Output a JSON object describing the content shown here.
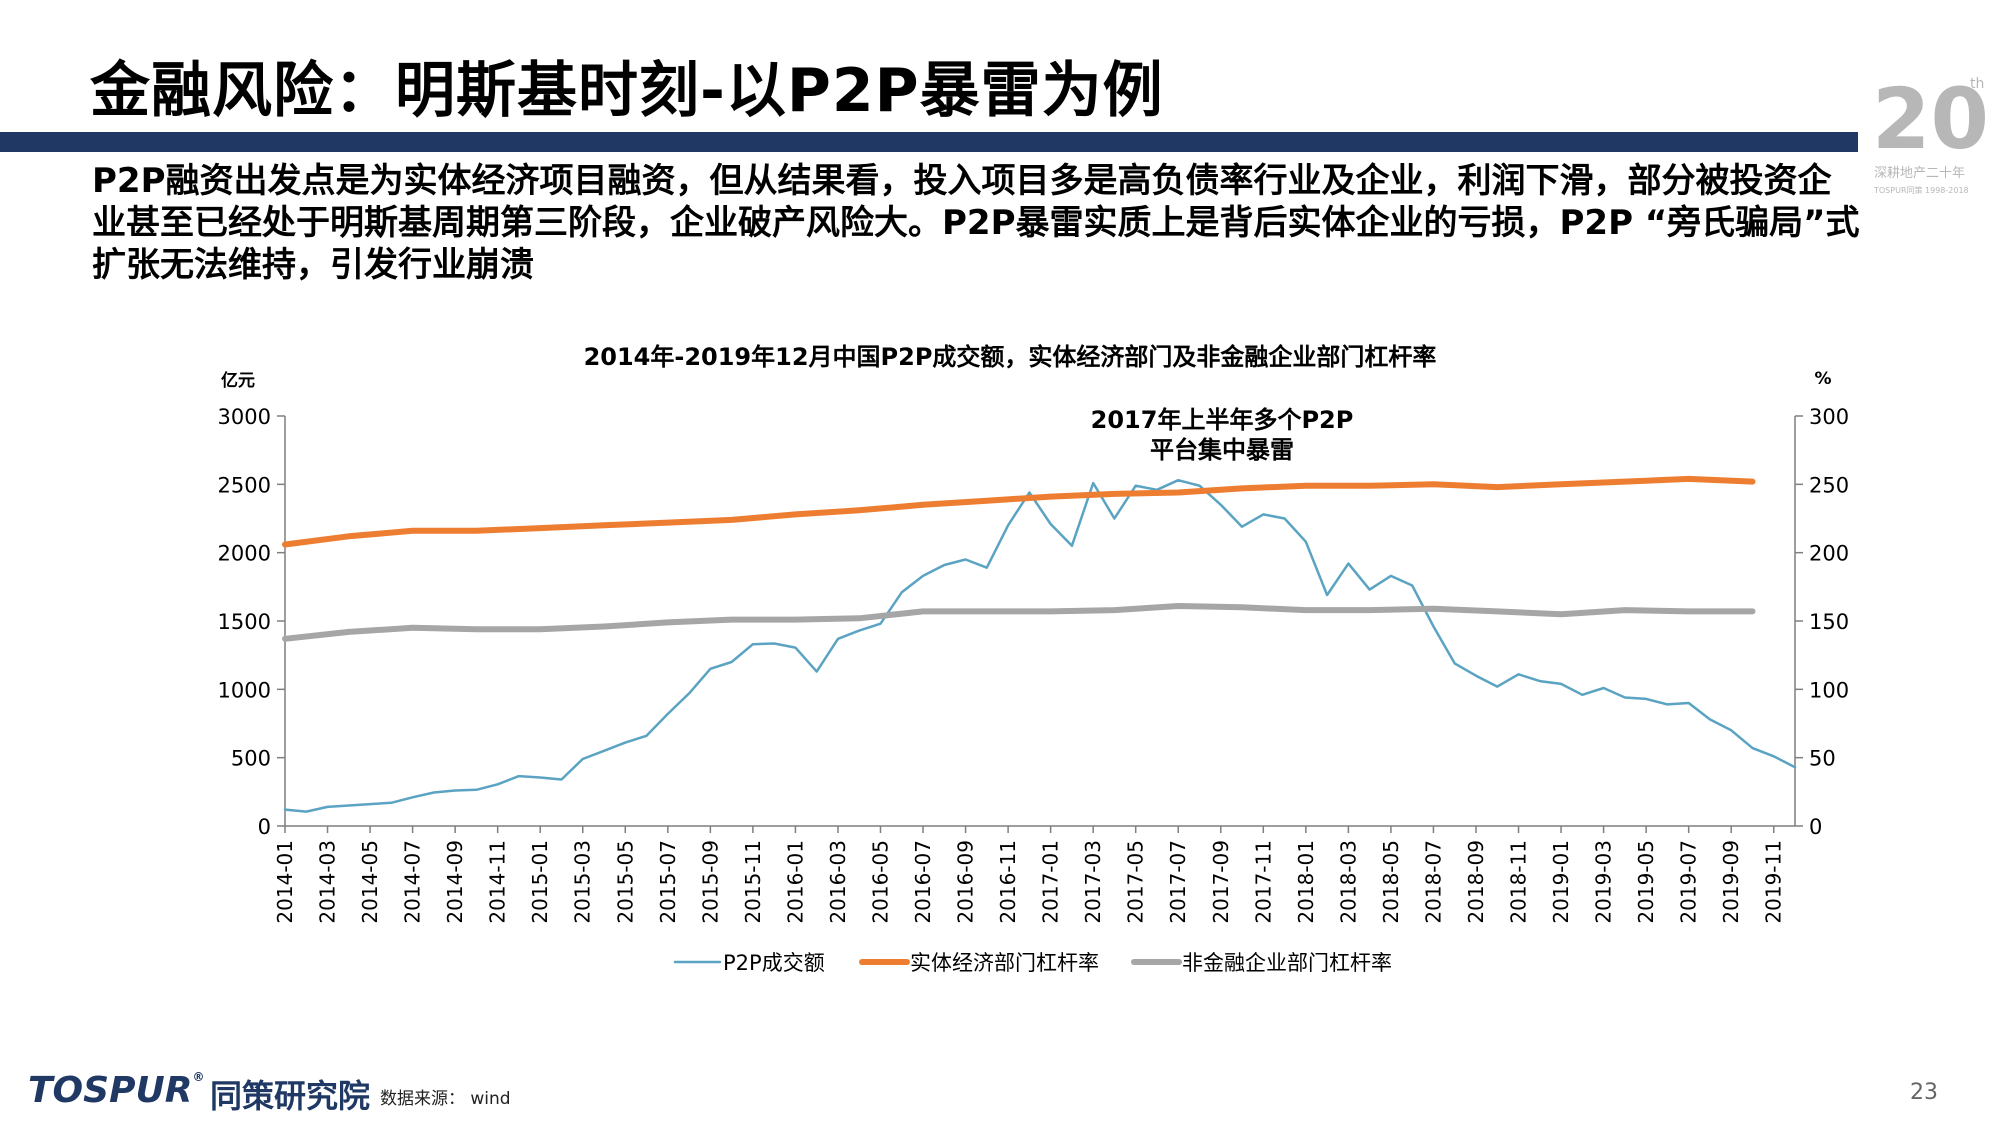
{
  "header": {
    "title": "金融风险：明斯基时刻-以P2P暴雷为例",
    "logo_text": "20th",
    "logo_caption": "深耕地产二十年",
    "logo_brand": "TOSPUR同策 1998-2018"
  },
  "description": "P2P融资出发点是为实体经济项目融资，但从结果看，投入项目多是高负债率行业及企业，利润下滑，部分被投资企业甚至已经处于明斯基周期第三阶段，企业破产风险大。P2P暴雷实质上是背后实体企业的亏损，P2P “旁氏骗局”式扩张无法维持，引发行业崩溃",
  "chart_data": {
    "type": "line",
    "title": "2014年-2019年12月中国P2P成交额，实体经济部门及非金融企业部门杠杆率",
    "y_left_label": "亿元",
    "y_right_label": "%",
    "ylim_left": [
      0,
      3000
    ],
    "ylim_right": [
      0,
      300
    ],
    "y_left_ticks": [
      "0",
      "500",
      "1000",
      "1500",
      "2000",
      "2500",
      "3000"
    ],
    "y_right_ticks": [
      "0",
      "50",
      "100",
      "150",
      "200",
      "250",
      "300"
    ],
    "annotation": [
      "2017年上半年多个P2P",
      "平台集中暴雷"
    ],
    "x_tick_labels": [
      "2014-01",
      "2014-03",
      "2014-05",
      "2014-07",
      "2014-09",
      "2014-11",
      "2015-01",
      "2015-03",
      "2015-05",
      "2015-07",
      "2015-09",
      "2015-11",
      "2016-01",
      "2016-03",
      "2016-05",
      "2016-07",
      "2016-09",
      "2016-11",
      "2017-01",
      "2017-03",
      "2017-05",
      "2017-07",
      "2017-09",
      "2017-11",
      "2018-01",
      "2018-03",
      "2018-05",
      "2018-07",
      "2018-09",
      "2018-11",
      "2019-01",
      "2019-03",
      "2019-05",
      "2019-07",
      "2019-09",
      "2019-11"
    ],
    "series": [
      {
        "name": "P2P成交额",
        "axis": "left",
        "color": "#5ba3c2",
        "start": "2014-01",
        "values": [
          120,
          105,
          140,
          150,
          160,
          170,
          210,
          245,
          260,
          265,
          305,
          365,
          355,
          340,
          490,
          550,
          610,
          660,
          820,
          970,
          1150,
          1200,
          1330,
          1335,
          1305,
          1130,
          1370,
          1430,
          1480,
          1710,
          1830,
          1910,
          1950,
          1890,
          2200,
          2440,
          2210,
          2050,
          2510,
          2250,
          2490,
          2460,
          2530,
          2490,
          2350,
          2190,
          2280,
          2250,
          2080,
          1690,
          1920,
          1730,
          1830,
          1760,
          1460,
          1190,
          1100,
          1020,
          1110,
          1060,
          1040,
          960,
          1010,
          940,
          930,
          890,
          900,
          780,
          700,
          570,
          510,
          430
        ]
      },
      {
        "name": "实体经济部门杠杆率",
        "axis": "right",
        "color": "#ed7d31",
        "start": "2014-01",
        "values": [
          206,
          212,
          216,
          216,
          218,
          220,
          222,
          224,
          228,
          231,
          235,
          238,
          241,
          243,
          244,
          247,
          249,
          249,
          250,
          248,
          250,
          252,
          254,
          252
        ]
      },
      {
        "name": "非金融企业部门杠杆率",
        "axis": "right",
        "color": "#a6a6a6",
        "start": "2014-01",
        "values": [
          137,
          142,
          145,
          144,
          144,
          146,
          149,
          151,
          151,
          152,
          157,
          157,
          157,
          158,
          161,
          160,
          158,
          158,
          159,
          157,
          155,
          158,
          157,
          157
        ]
      }
    ],
    "legend_position": "bottom",
    "grid": false
  },
  "footer": {
    "logo": "TOSPUR",
    "org": "同策研究院",
    "source": "数据来源： wind",
    "page_number": "23"
  }
}
